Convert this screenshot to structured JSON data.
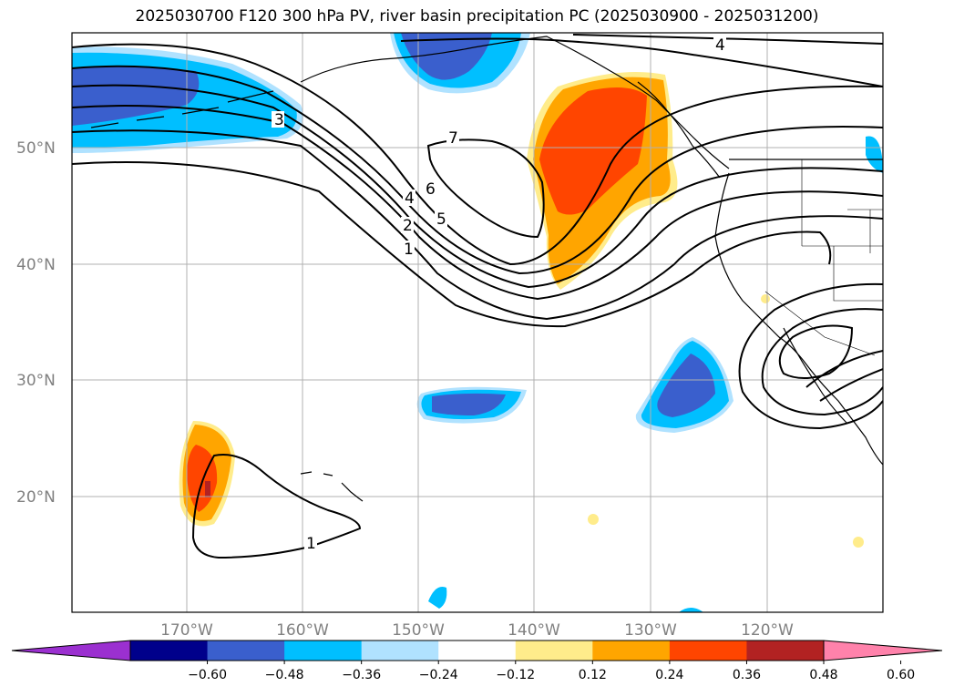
{
  "title": "2025030700 F120 300 hPa PV, river basin precipitation PC (2025030900 - 2025031200)",
  "lat_labels": [
    "50°N",
    "40°N",
    "30°N",
    "20°N"
  ],
  "lon_labels": [
    "170°W",
    "160°W",
    "150°W",
    "140°W",
    "130°W",
    "120°W"
  ],
  "contour_labels": [
    "3",
    "7",
    "6",
    "4",
    "5",
    "2",
    "1",
    "1",
    "4"
  ],
  "colorbar": {
    "ticks": [
      "−0.60",
      "−0.48",
      "−0.36",
      "−0.24",
      "−0.12",
      "0.12",
      "0.24",
      "0.36",
      "0.48",
      "0.60"
    ],
    "colors": [
      "#9b30d0",
      "#00008b",
      "#3a5fcd",
      "#00bfff",
      "#b0e2ff",
      "#ffffff",
      "#ffec8b",
      "#ffa500",
      "#ff4500",
      "#b22222",
      "#ff82ab"
    ]
  }
}
